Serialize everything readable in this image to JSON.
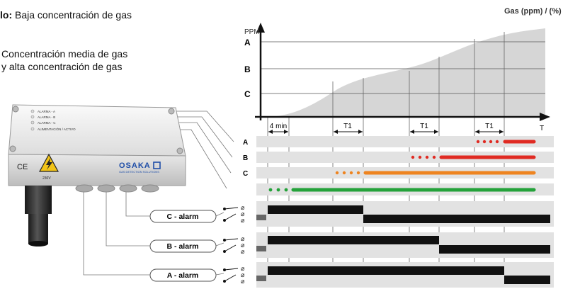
{
  "legend": {
    "line1_bold": "lo:",
    "line1_text": " Baja concentración de gas",
    "line2": "Concentración media de gas",
    "line3": "y alta concentración de gas"
  },
  "chart": {
    "y_title": "PPM",
    "top_right_label": "Gas (ppm) / (%)",
    "levels": [
      "A",
      "B",
      "C"
    ],
    "x_end_label": "T",
    "interval_4min": "4 min",
    "interval_t1": [
      "T1",
      "T1",
      "T1"
    ],
    "channel_rows": [
      "A",
      "B",
      "C"
    ]
  },
  "device": {
    "leds": [
      "ALARMA - A",
      "ALARMA - B",
      "ALARMA - C",
      "ALIMENTACIÓN / ACTIVO"
    ],
    "ce_mark": "CE",
    "voltage": "230V",
    "brand": "OSAKA",
    "brand_sub": "GAS DETECTION SOLUTIONS"
  },
  "relays": [
    {
      "label": "C - alarm"
    },
    {
      "label": "B - alarm"
    },
    {
      "label": "A - alarm"
    }
  ],
  "colors": {
    "red": "#e02a22",
    "orange": "#ee8420",
    "green": "#24a23a",
    "band": "#e2e2e2",
    "area": "#d6d6d6",
    "relay_on": "#111111"
  }
}
